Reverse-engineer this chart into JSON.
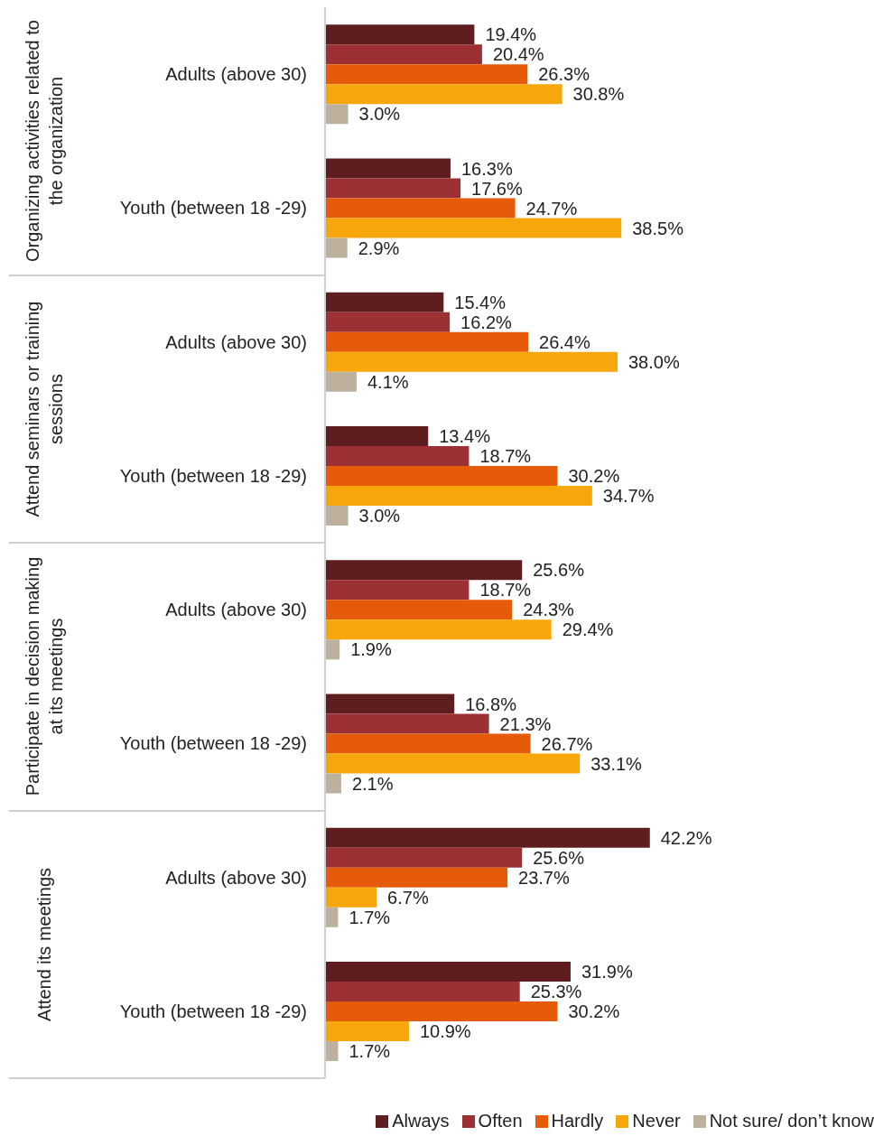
{
  "chart_data": {
    "type": "bar",
    "orientation": "horizontal",
    "categories": [
      "Adults (above 30)",
      "Youth (between 18 -29)",
      "Adults (above 30)",
      "Youth (between 18 -29)",
      "Adults (above 30)",
      "Youth (between 18 -29)",
      "Adults (above 30)",
      "Youth (between 18 -29)"
    ],
    "annotations": [
      "Organizing activities related to the organization",
      "Attend seminars or training sessions",
      "Participate in decision making at its meetings",
      "Attend its meetings"
    ],
    "series": [
      {
        "name": "Always",
        "color": "#5e1e1f",
        "values": [
          19.4,
          16.3,
          15.4,
          13.4,
          25.6,
          16.8,
          42.2,
          31.9
        ],
        "value_labels": [
          "19.4%",
          "16.3%",
          "15.4%",
          "13.4%",
          "25.6%",
          "16.8%",
          "42.2%",
          "31.9%"
        ]
      },
      {
        "name": "Often",
        "color": "#9c3034",
        "values": [
          20.4,
          17.6,
          16.2,
          18.7,
          18.7,
          21.3,
          25.6,
          25.3
        ],
        "value_labels": [
          "20.4%",
          "17.6%",
          "16.2%",
          "18.7%",
          "18.7%",
          "21.3%",
          "25.6%",
          "25.3%"
        ]
      },
      {
        "name": "Hardly",
        "color": "#e55b0a",
        "values": [
          26.3,
          24.7,
          26.4,
          30.2,
          24.3,
          26.7,
          23.7,
          30.2
        ],
        "value_labels": [
          "26.3%",
          "24.7%",
          "26.4%",
          "30.2%",
          "24.3%",
          "26.7%",
          "23.7%",
          "30.2%"
        ]
      },
      {
        "name": "Never",
        "color": "#f7a60c",
        "values": [
          30.8,
          38.5,
          38.0,
          34.7,
          29.4,
          33.1,
          6.7,
          10.9
        ],
        "value_labels": [
          "30.8%",
          "38.5%",
          "38.0%",
          "34.7%",
          "29.4%",
          "33.1%",
          "6.7%",
          "10.9%"
        ]
      },
      {
        "name": "Not sure/ don’t know",
        "color": "#bdb19e",
        "values": [
          3.0,
          2.9,
          4.1,
          3.0,
          1.9,
          2.1,
          1.7,
          1.7
        ],
        "value_labels": [
          "3.0%",
          "2.9%",
          "4.1%",
          "3.0%",
          "1.9%",
          "2.1%",
          "1.7%",
          "1.7%"
        ]
      }
    ],
    "legend": "bottom right",
    "grid": false
  }
}
